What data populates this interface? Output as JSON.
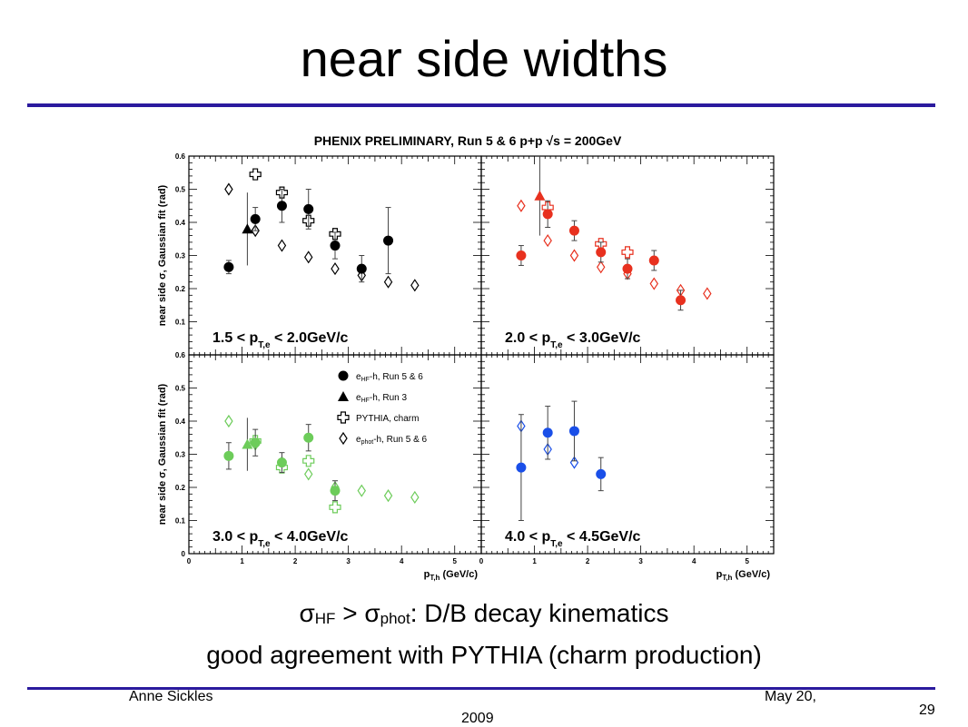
{
  "slide": {
    "title": "near side widths",
    "line1": {
      "sigma": "σ",
      "sub_hf": "HF",
      "middle": " > σ",
      "sub_phot": "phot",
      "rest": ": D/B decay kinematics"
    },
    "line2": "good agreement with PYTHIA (charm production)",
    "author": "Anne Sickles",
    "date_line1": "May 20,",
    "date_line2": "2009",
    "page_number": "29"
  },
  "colors": {
    "rule": "#2b1a9e",
    "panel1": "#000000",
    "panel2": "#e8311f",
    "panel3": "#6dcc5a",
    "panel4": "#1a4fe8"
  },
  "chart_data": {
    "type": "scatter",
    "title": "PHENIX PRELIMINARY, Run 5 & 6 p+p √s = 200GeV",
    "ylabel": "near side σ, Gaussian fit (rad)",
    "xlabel": "p_T,h (GeV/c)",
    "xlabel_main": "p",
    "xlabel_sub": "T,h",
    "xlabel_unit": " (GeV/c)",
    "xlim": [
      0,
      5.5
    ],
    "ylim": [
      0,
      0.6
    ],
    "x_ticks": [
      "0",
      "1",
      "2",
      "3",
      "4",
      "5"
    ],
    "y_ticks": [
      "0",
      "0.1",
      "0.2",
      "0.3",
      "0.4",
      "0.5",
      "0.6"
    ],
    "legend": {
      "placement": "panel-3-top",
      "entries": [
        {
          "marker": "filled-circle",
          "main": "e",
          "sub": "HF",
          "rest": "-h, Run 5 & 6"
        },
        {
          "marker": "filled-triangle",
          "main": "e",
          "sub": "HF",
          "rest": "-h, Run 3"
        },
        {
          "marker": "open-cross",
          "main": "PYTHIA, charm",
          "sub": "",
          "rest": ""
        },
        {
          "marker": "open-diamond",
          "main": "e",
          "sub": "phot",
          "rest": "-h, Run 5 & 6"
        }
      ]
    },
    "panels": [
      {
        "label_pre": "1.5 < p",
        "label_sub": "T,e",
        "label_post": " < 2.0GeV/c",
        "color": "#000000",
        "run56": [
          {
            "x": 0.75,
            "y": 0.265,
            "err": 0.02
          },
          {
            "x": 1.25,
            "y": 0.41,
            "err": 0.035
          },
          {
            "x": 1.75,
            "y": 0.45,
            "err": 0.05
          },
          {
            "x": 2.25,
            "y": 0.44,
            "err": 0.06
          },
          {
            "x": 2.75,
            "y": 0.33,
            "err": 0.04
          },
          {
            "x": 3.25,
            "y": 0.26,
            "err": 0.04
          },
          {
            "x": 3.75,
            "y": 0.345,
            "err": 0.1
          }
        ],
        "run3": [
          {
            "x": 1.1,
            "y": 0.38,
            "err": 0.11
          }
        ],
        "pythia": [
          {
            "x": 1.25,
            "y": 0.545,
            "err": 0.015
          },
          {
            "x": 1.75,
            "y": 0.49,
            "err": 0.015
          },
          {
            "x": 2.25,
            "y": 0.405,
            "err": 0.015
          },
          {
            "x": 2.75,
            "y": 0.365,
            "err": 0.015
          }
        ],
        "phot": [
          {
            "x": 0.75,
            "y": 0.5
          },
          {
            "x": 1.25,
            "y": 0.375
          },
          {
            "x": 1.75,
            "y": 0.33
          },
          {
            "x": 2.25,
            "y": 0.295
          },
          {
            "x": 2.75,
            "y": 0.26
          },
          {
            "x": 3.25,
            "y": 0.24
          },
          {
            "x": 3.75,
            "y": 0.22
          },
          {
            "x": 4.25,
            "y": 0.21
          }
        ]
      },
      {
        "label_pre": "2.0 < p",
        "label_sub": "T,e",
        "label_post": " < 3.0GeV/c",
        "color": "#e8311f",
        "run56": [
          {
            "x": 0.75,
            "y": 0.3,
            "err": 0.03
          },
          {
            "x": 1.25,
            "y": 0.425,
            "err": 0.04
          },
          {
            "x": 1.75,
            "y": 0.375,
            "err": 0.03
          },
          {
            "x": 2.25,
            "y": 0.31,
            "err": 0.03
          },
          {
            "x": 2.75,
            "y": 0.26,
            "err": 0.03
          },
          {
            "x": 3.25,
            "y": 0.285,
            "err": 0.03
          },
          {
            "x": 3.75,
            "y": 0.165,
            "err": 0.03
          }
        ],
        "run3": [
          {
            "x": 1.1,
            "y": 0.48,
            "err": 0.12
          }
        ],
        "pythia": [
          {
            "x": 1.25,
            "y": 0.445,
            "err": 0.015
          },
          {
            "x": 2.25,
            "y": 0.335,
            "err": 0.015
          },
          {
            "x": 2.75,
            "y": 0.31,
            "err": 0.015
          }
        ],
        "phot": [
          {
            "x": 0.75,
            "y": 0.45
          },
          {
            "x": 1.25,
            "y": 0.345
          },
          {
            "x": 1.75,
            "y": 0.3
          },
          {
            "x": 2.25,
            "y": 0.265
          },
          {
            "x": 2.75,
            "y": 0.245
          },
          {
            "x": 3.25,
            "y": 0.215
          },
          {
            "x": 3.75,
            "y": 0.195
          },
          {
            "x": 4.25,
            "y": 0.185
          }
        ]
      },
      {
        "label_pre": "3.0 < p",
        "label_sub": "T,e",
        "label_post": " < 4.0GeV/c",
        "color": "#6dcc5a",
        "run56": [
          {
            "x": 0.75,
            "y": 0.295,
            "err": 0.04
          },
          {
            "x": 1.25,
            "y": 0.335,
            "err": 0.04
          },
          {
            "x": 1.75,
            "y": 0.275,
            "err": 0.03
          },
          {
            "x": 2.25,
            "y": 0.35,
            "err": 0.04
          },
          {
            "x": 2.75,
            "y": 0.19,
            "err": 0.03
          }
        ],
        "run3": [
          {
            "x": 1.1,
            "y": 0.33,
            "err": 0.08
          }
        ],
        "pythia": [
          {
            "x": 1.25,
            "y": 0.34,
            "err": 0.015
          },
          {
            "x": 1.75,
            "y": 0.26,
            "err": 0.015
          },
          {
            "x": 2.25,
            "y": 0.28,
            "err": 0.015
          },
          {
            "x": 2.75,
            "y": 0.14,
            "err": 0.015
          }
        ],
        "phot": [
          {
            "x": 0.75,
            "y": 0.4
          },
          {
            "x": 1.25,
            "y": 0.33
          },
          {
            "x": 1.75,
            "y": 0.275
          },
          {
            "x": 2.25,
            "y": 0.24
          },
          {
            "x": 2.75,
            "y": 0.2
          },
          {
            "x": 3.25,
            "y": 0.19
          },
          {
            "x": 3.75,
            "y": 0.175
          },
          {
            "x": 4.25,
            "y": 0.17
          }
        ]
      },
      {
        "label_pre": "4.0 < p",
        "label_sub": "T,e",
        "label_post": " < 4.5GeV/c",
        "color": "#1a4fe8",
        "run56": [
          {
            "x": 0.75,
            "y": 0.26,
            "err": 0.16
          },
          {
            "x": 1.25,
            "y": 0.365,
            "err": 0.08
          },
          {
            "x": 1.75,
            "y": 0.37,
            "err": 0.09
          },
          {
            "x": 2.25,
            "y": 0.24,
            "err": 0.05
          }
        ],
        "run3": [],
        "pythia": [],
        "phot": [
          {
            "x": 0.75,
            "y": 0.385
          },
          {
            "x": 1.25,
            "y": 0.315
          },
          {
            "x": 1.75,
            "y": 0.275
          }
        ]
      }
    ]
  }
}
